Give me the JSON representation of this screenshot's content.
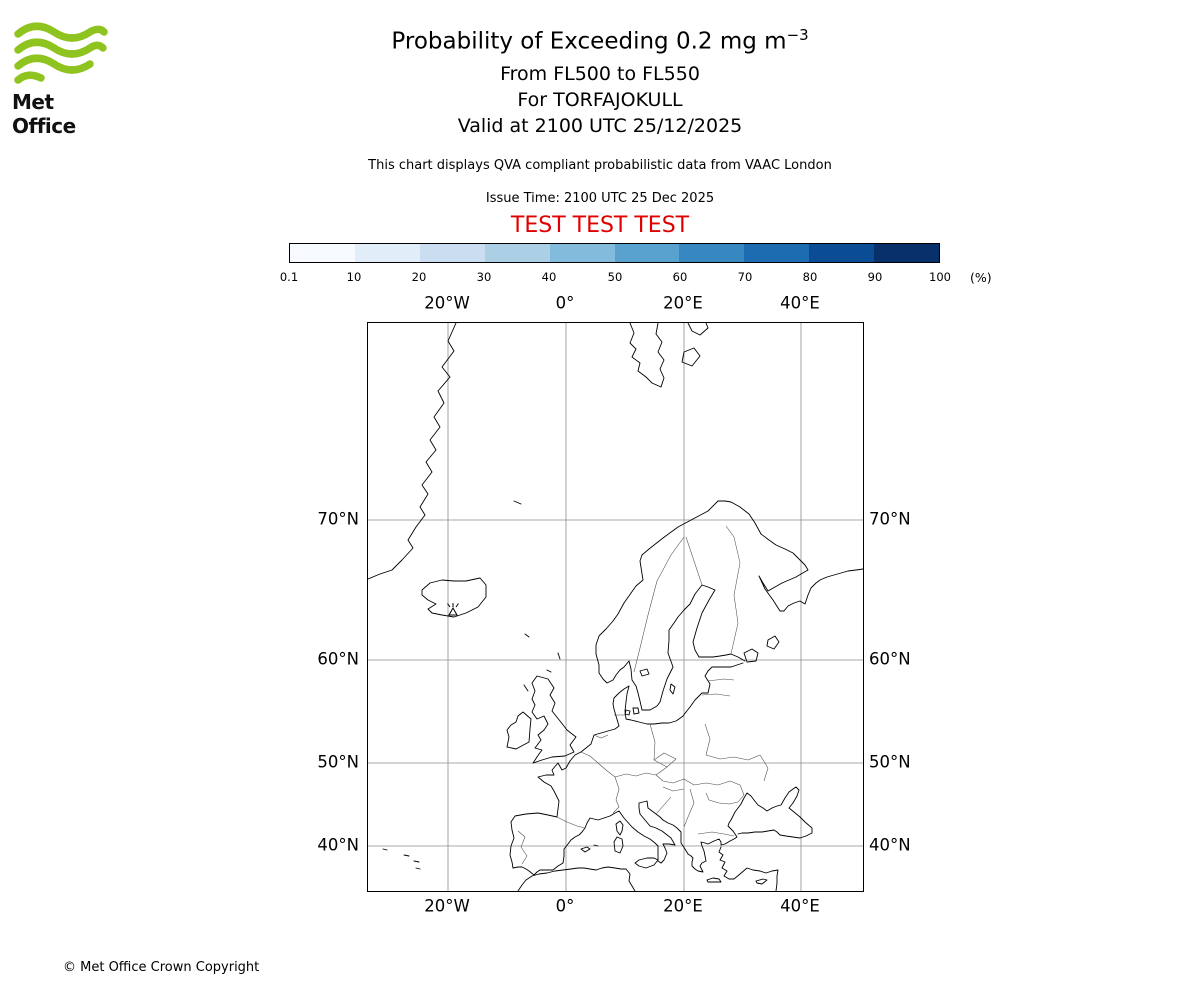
{
  "logo": {
    "text": "Met Office",
    "green": "#8fc31f"
  },
  "header": {
    "title_main": "Probability of Exceeding 0.2 mg m",
    "title_exponent": "−3",
    "subtitle_flight_levels": "From FL500 to FL550",
    "subtitle_volcano": "For TORFAJOKULL",
    "subtitle_valid": "Valid at 2100 UTC 25/12/2025",
    "description": "This chart displays QVA compliant probabilistic data from VAAC London",
    "issue_time": "Issue Time: 2100 UTC 25 Dec 2025",
    "test_banner": "TEST TEST TEST",
    "test_banner_color": "#e00000"
  },
  "colorbar": {
    "ticks": [
      "0.1",
      "10",
      "20",
      "30",
      "40",
      "50",
      "60",
      "70",
      "80",
      "90",
      "100"
    ],
    "unit": "(%)",
    "colors": [
      "#f7fbff",
      "#e1edf8",
      "#cbdef1",
      "#abd0e6",
      "#82bbdb",
      "#59a1cf",
      "#3787c0",
      "#1d6cb1",
      "#0b4d94",
      "#08306b"
    ]
  },
  "map": {
    "x_labels": [
      "20°W",
      "0°",
      "20°E",
      "40°E"
    ],
    "y_labels": [
      "70°N",
      "60°N",
      "50°N",
      "40°N"
    ],
    "marker": "volcano at TORFAJOKULL (Iceland)"
  },
  "footer": {
    "copyright": "© Met Office Crown Copyright"
  }
}
